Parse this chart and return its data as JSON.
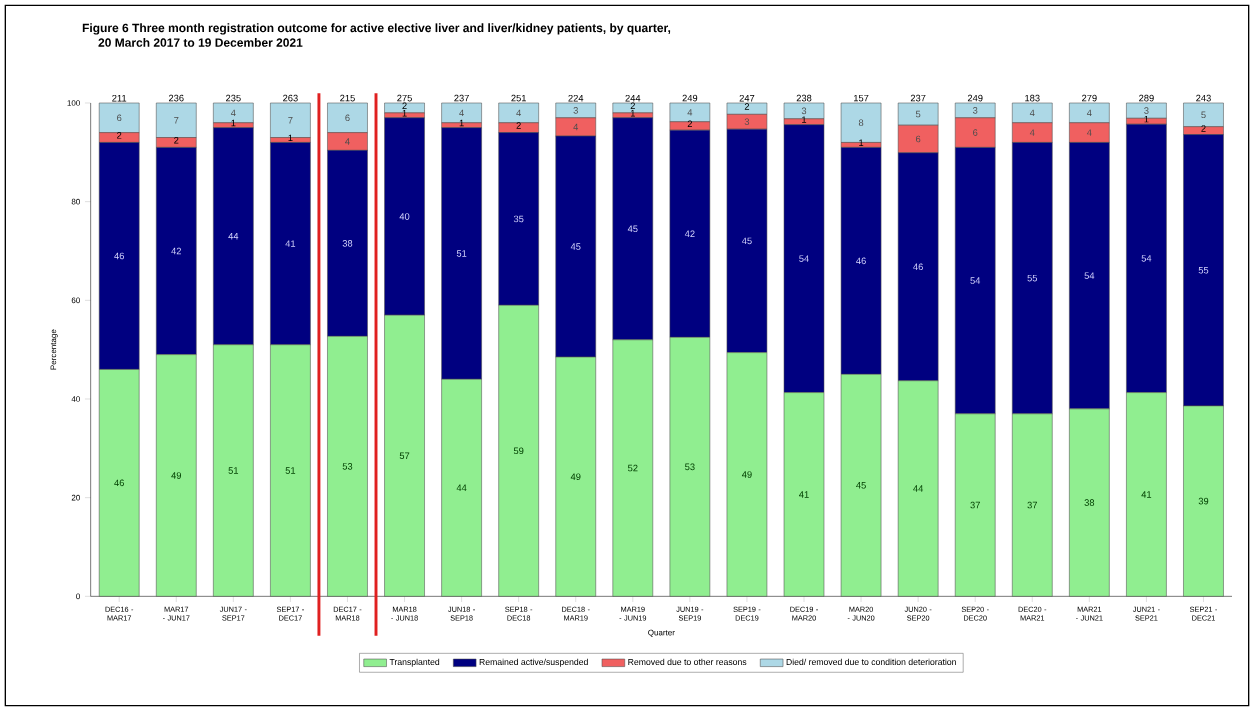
{
  "chart_data": {
    "type": "bar",
    "title": "Figure 6 Three month registration outcome for active elective liver and liver/kidney patients, by quarter,",
    "subtitle": "20 March 2017 to 19 December 2021",
    "xlabel": "Quarter",
    "ylabel": "Percentage",
    "categories": [
      "DEC16 - MAR17",
      "MAR17 - JUN17",
      "JUN17 - SEP17",
      "SEP17 - DEC17",
      "DEC17 - MAR18",
      "MAR18 - JUN18",
      "JUN18 - SEP18",
      "SEP18 - DEC18",
      "DEC18 - MAR19",
      "MAR19 - JUN19",
      "JUN19 - SEP19",
      "SEP19 - DEC19",
      "DEC19 - MAR20",
      "MAR20 - JUN20",
      "JUN20 - SEP20",
      "SEP20 - DEC20",
      "DEC20 - MAR21",
      "MAR21 - JUN21",
      "JUN21 - SEP21",
      "SEP21 - DEC21"
    ],
    "stacked": true,
    "series": [
      {
        "name": "Transplanted",
        "color": "#90ee90",
        "values": [
          46,
          49,
          51,
          51,
          52.7,
          57,
          44,
          59,
          48.5,
          52,
          52.5,
          49.4,
          41.3,
          45,
          43.7,
          37,
          37,
          38,
          41.3,
          38.6
        ],
        "value_labels": [
          "46",
          "49",
          "51",
          "51",
          "53",
          "57",
          "44",
          "59",
          "49",
          "52",
          "53",
          "49",
          "41",
          "45",
          "44",
          "37",
          "37",
          "38",
          "41",
          "39"
        ]
      },
      {
        "name": "Remained active/suspended",
        "color": "#000080",
        "values": [
          46,
          42,
          44,
          41,
          37.7,
          40,
          51,
          35,
          44.8,
          45,
          42,
          45.3,
          54.3,
          46,
          46.2,
          54,
          55,
          54,
          54.4,
          55
        ],
        "value_labels": [
          "46",
          "42",
          "44",
          "41",
          "38",
          "40",
          "51",
          "35",
          "45",
          "45",
          "42",
          "45",
          "54",
          "46",
          "46",
          "54",
          "55",
          "54",
          "54",
          "55"
        ]
      },
      {
        "name": "Removed due to other reasons",
        "color": "#f06060",
        "values": [
          2,
          2,
          1,
          1,
          3.6,
          1,
          1,
          2,
          3.7,
          1,
          1.7,
          3,
          1.2,
          1,
          5.6,
          6,
          4,
          4,
          1.2,
          1.6
        ],
        "value_labels": [
          "2",
          "2",
          "1",
          "1",
          "4",
          "1",
          "1",
          "2",
          "4",
          "1",
          "2",
          "3",
          "1",
          "1",
          "6",
          "6",
          "4",
          "4",
          "1",
          "2"
        ]
      },
      {
        "name": "Died/ removed due to condition deterioration",
        "color": "#add8e6",
        "values": [
          6,
          7,
          4,
          7,
          6,
          2,
          4,
          4,
          3,
          2,
          3.8,
          2.3,
          3.2,
          8,
          4.5,
          3,
          4,
          4,
          3.1,
          4.8
        ],
        "value_labels": [
          "6",
          "7",
          "4",
          "7",
          "6",
          "2",
          "4",
          "4",
          "3",
          "2",
          "4",
          "2",
          "3",
          "8",
          "5",
          "3",
          "4",
          "4",
          "3",
          "5"
        ]
      }
    ],
    "annotations": [
      "211",
      "236",
      "235",
      "263",
      "215",
      "275",
      "237",
      "251",
      "224",
      "244",
      "249",
      "247",
      "238",
      "157",
      "237",
      "249",
      "183",
      "279",
      "289",
      "243"
    ],
    "ylim": [
      0,
      100
    ],
    "yticks": [
      0,
      20,
      40,
      60,
      80,
      100
    ],
    "legend": "bottom",
    "grid": false
  }
}
